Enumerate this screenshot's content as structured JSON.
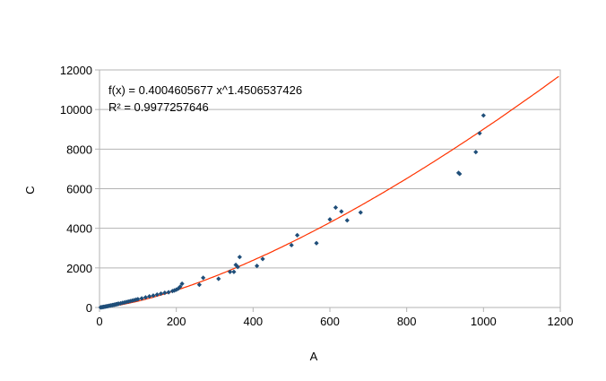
{
  "chart_data": {
    "type": "scatter",
    "title": "",
    "xlabel": "A",
    "ylabel": "C",
    "xlim": [
      0,
      1200
    ],
    "ylim": [
      0,
      12000
    ],
    "x_ticks": [
      "0",
      "200",
      "400",
      "600",
      "800",
      "1000",
      "1200"
    ],
    "y_ticks": [
      "0",
      "2000",
      "4000",
      "6000",
      "8000",
      "10000",
      "12000"
    ],
    "grid": "horizontal",
    "legend": "none",
    "annotation": {
      "equation": "f(x) = 0.4004605677 x^1.4506537426",
      "r_squared": "R² = 0.9977257646"
    },
    "trendline": {
      "type": "power",
      "coefficient": 0.4004605677,
      "exponent": 1.4506537426,
      "color": "#ff3300"
    },
    "marker_color": "#1f4e79",
    "series": [
      {
        "points": [
          [
            3,
            5
          ],
          [
            5,
            10
          ],
          [
            8,
            20
          ],
          [
            10,
            30
          ],
          [
            12,
            35
          ],
          [
            15,
            45
          ],
          [
            18,
            55
          ],
          [
            20,
            65
          ],
          [
            22,
            70
          ],
          [
            25,
            85
          ],
          [
            28,
            95
          ],
          [
            30,
            105
          ],
          [
            33,
            115
          ],
          [
            35,
            125
          ],
          [
            38,
            135
          ],
          [
            40,
            145
          ],
          [
            43,
            160
          ],
          [
            45,
            170
          ],
          [
            48,
            180
          ],
          [
            50,
            190
          ],
          [
            55,
            210
          ],
          [
            60,
            235
          ],
          [
            65,
            255
          ],
          [
            70,
            280
          ],
          [
            75,
            300
          ],
          [
            80,
            325
          ],
          [
            85,
            345
          ],
          [
            90,
            370
          ],
          [
            95,
            395
          ],
          [
            100,
            420
          ],
          [
            110,
            460
          ],
          [
            120,
            510
          ],
          [
            130,
            560
          ],
          [
            140,
            600
          ],
          [
            150,
            650
          ],
          [
            160,
            700
          ],
          [
            170,
            740
          ],
          [
            180,
            770
          ],
          [
            190,
            830
          ],
          [
            195,
            860
          ],
          [
            200,
            900
          ],
          [
            205,
            950
          ],
          [
            210,
            1050
          ],
          [
            215,
            1200
          ],
          [
            260,
            1150
          ],
          [
            270,
            1500
          ],
          [
            310,
            1450
          ],
          [
            340,
            1800
          ],
          [
            350,
            1800
          ],
          [
            355,
            2150
          ],
          [
            360,
            2050
          ],
          [
            365,
            2550
          ],
          [
            410,
            2100
          ],
          [
            425,
            2450
          ],
          [
            500,
            3150
          ],
          [
            515,
            3650
          ],
          [
            565,
            3250
          ],
          [
            600,
            4450
          ],
          [
            615,
            5050
          ],
          [
            630,
            4850
          ],
          [
            645,
            4400
          ],
          [
            680,
            4800
          ],
          [
            935,
            6800
          ],
          [
            938,
            6750
          ],
          [
            980,
            7850
          ],
          [
            990,
            8800
          ],
          [
            1000,
            9700
          ]
        ]
      }
    ]
  }
}
